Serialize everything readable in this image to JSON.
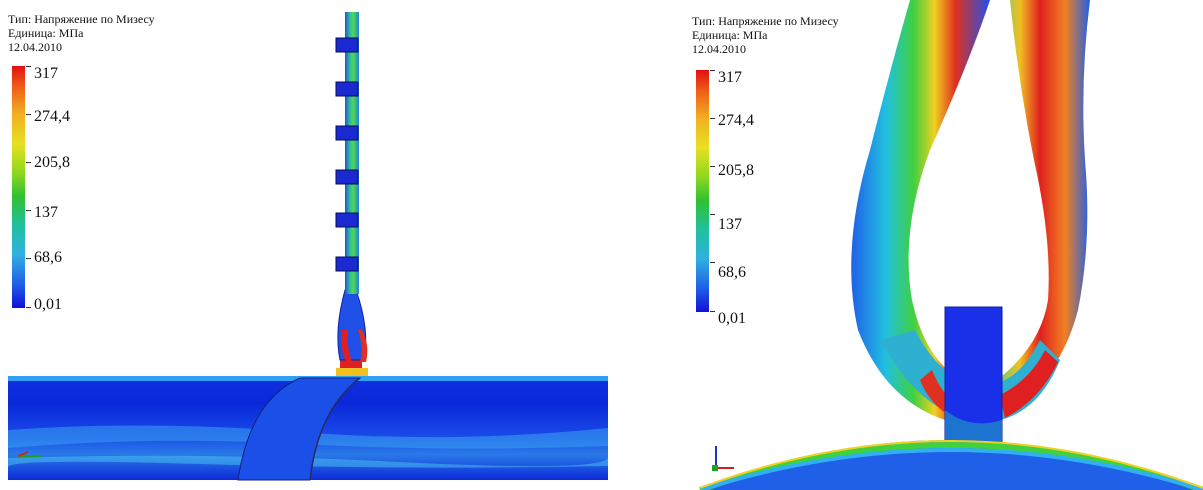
{
  "panels": [
    {
      "legend": {
        "type_line": "Тип: Напряжение по Мизесу",
        "unit_line": "Единица: МПа",
        "date": "12.04.2010",
        "scale": [
          "317",
          "274,4",
          "205,8",
          "137",
          "68,6",
          "0,01"
        ]
      }
    },
    {
      "legend": {
        "type_line": "Тип: Напряжение по Мизесу",
        "unit_line": "Единица: МПа",
        "date": "12.04.2010",
        "scale": [
          "317",
          "274,4",
          "205,8",
          "137",
          "68,6",
          "0,01"
        ]
      }
    }
  ]
}
